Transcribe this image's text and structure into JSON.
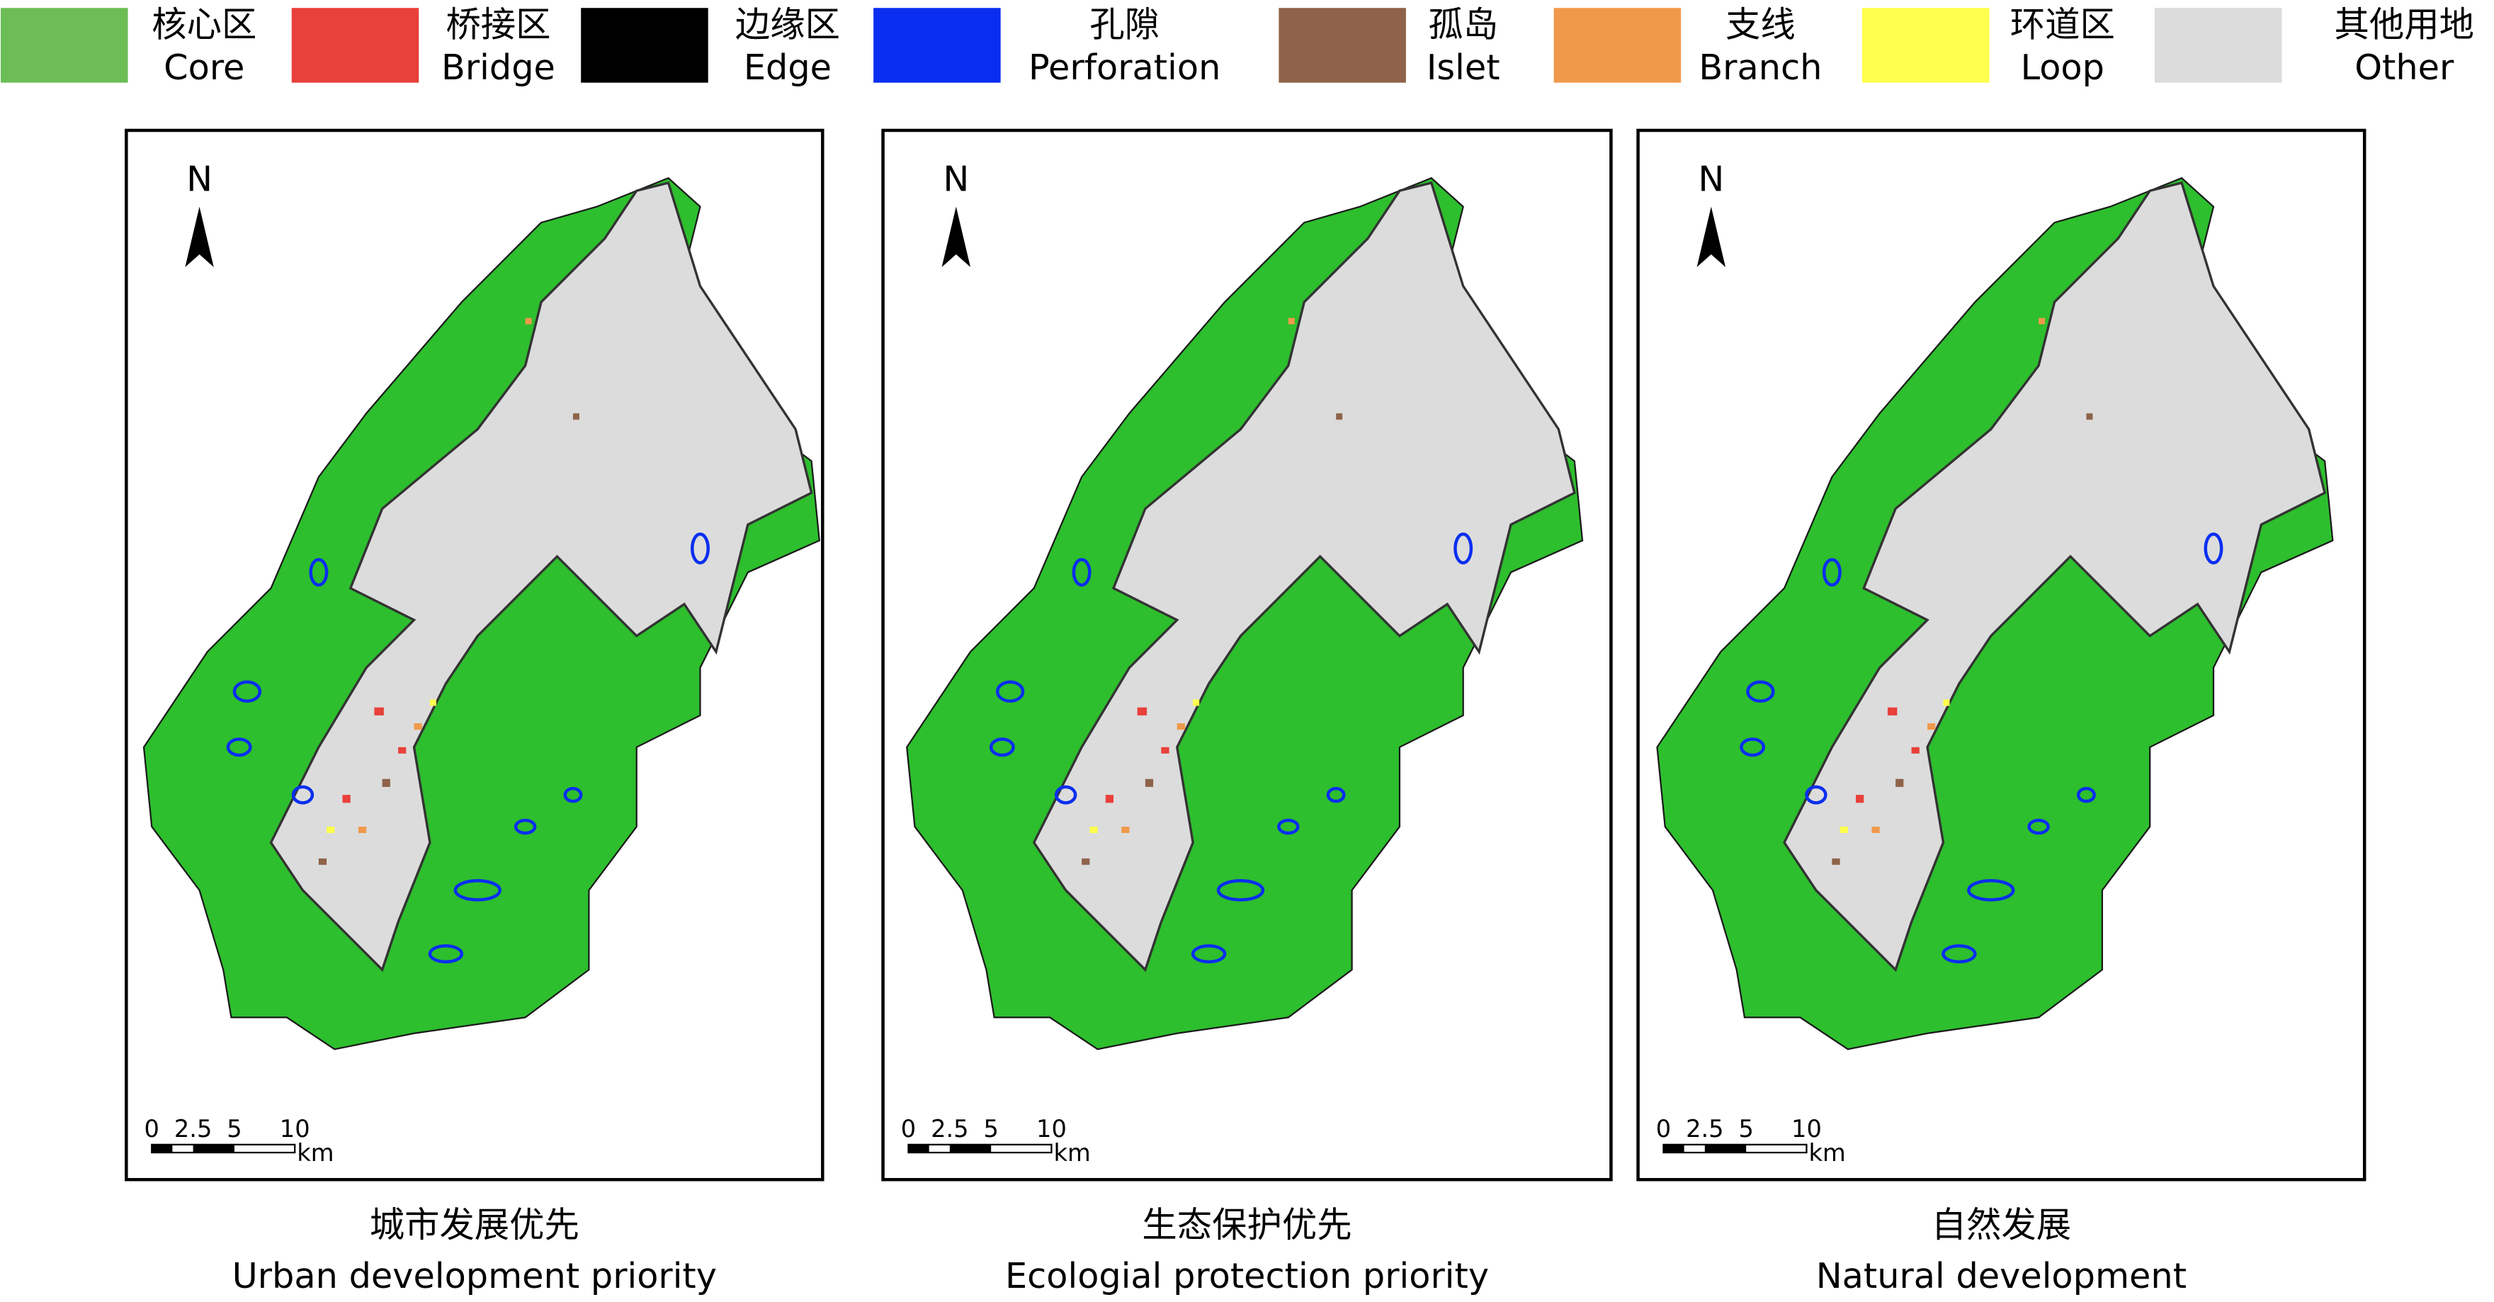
{
  "legend": [
    {
      "zh": "核心区",
      "en": "Core",
      "color": "#6cbd55"
    },
    {
      "zh": "桥接区",
      "en": "Bridge",
      "color": "#e8403a"
    },
    {
      "zh": "边缘区",
      "en": "Edge",
      "color": "#000000"
    },
    {
      "zh": "孔隙",
      "en": "Perforation",
      "color": "#0a2ef0"
    },
    {
      "zh": "孤岛",
      "en": "Islet",
      "color": "#8e6349"
    },
    {
      "zh": "支线",
      "en": "Branch",
      "color": "#f0994a"
    },
    {
      "zh": "环道区",
      "en": "Loop",
      "color": "#ffff4d"
    },
    {
      "zh": "其他用地",
      "en": "Other",
      "color": "#dcdcdc"
    }
  ],
  "panels": [
    {
      "zh": "城市发展优先",
      "en": "Urban development priority"
    },
    {
      "zh": "生态保护优先",
      "en": "Ecologial protection priority"
    },
    {
      "zh": "自然发展",
      "en": "Natural development"
    }
  ],
  "north": "N",
  "scale": {
    "ticks": [
      "0",
      "2.5",
      "5",
      "10"
    ],
    "unit": "km"
  }
}
